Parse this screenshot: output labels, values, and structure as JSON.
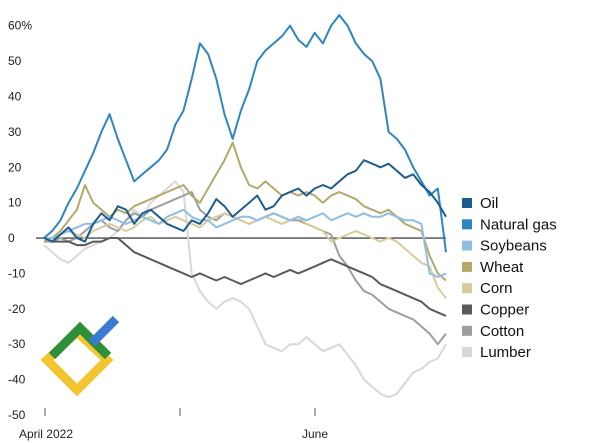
{
  "chart_data": {
    "type": "line",
    "ylim": [
      -50,
      65
    ],
    "y_ticks": [
      "60%",
      "50",
      "40",
      "30",
      "20",
      "10",
      "0",
      "-10",
      "-20",
      "-30",
      "-40",
      "-50"
    ],
    "y_tick_values": [
      60,
      50,
      40,
      30,
      20,
      10,
      0,
      -10,
      -20,
      -30,
      -40,
      -50
    ],
    "x_labels": [
      "April 2022",
      "June"
    ],
    "grid": false,
    "zero_line": true,
    "legend_position": "right",
    "series": [
      {
        "name": "Oil",
        "color": "#1d5c8f",
        "values": [
          0,
          -1,
          1,
          3,
          0,
          -1,
          4,
          7,
          5,
          9,
          8,
          4,
          7,
          8,
          6,
          4,
          3,
          2,
          5,
          4,
          7,
          11,
          9,
          6,
          8,
          10,
          12,
          8,
          9,
          12,
          13,
          14,
          12,
          14,
          15,
          14,
          16,
          18,
          19,
          22,
          21,
          20,
          21,
          19,
          17,
          18,
          15,
          13,
          10,
          6
        ]
      },
      {
        "name": "Natural gas",
        "color": "#2e86c1",
        "values": [
          0,
          2,
          5,
          10,
          14,
          19,
          24,
          30,
          35,
          28,
          22,
          16,
          18,
          20,
          22,
          25,
          32,
          36,
          45,
          55,
          52,
          45,
          35,
          28,
          36,
          42,
          50,
          53,
          55,
          57,
          60,
          56,
          54,
          58,
          55,
          60,
          63,
          60,
          55,
          52,
          50,
          45,
          30,
          28,
          25,
          20,
          16,
          12,
          14,
          -4
        ]
      },
      {
        "name": "Soybeans",
        "color": "#8fbfe0",
        "values": [
          0,
          0,
          1,
          2,
          3,
          4,
          4,
          5,
          6,
          5,
          4,
          5,
          6,
          5,
          4,
          6,
          7,
          8,
          6,
          5,
          5,
          3,
          4,
          5,
          6,
          6,
          5,
          6,
          7,
          6,
          5,
          6,
          5,
          6,
          7,
          5,
          6,
          7,
          6,
          7,
          6,
          6,
          7,
          6,
          5,
          5,
          4,
          -10,
          -11,
          -10
        ]
      },
      {
        "name": "Wheat",
        "color": "#b5a96a",
        "values": [
          -1,
          0,
          2,
          5,
          8,
          15,
          10,
          8,
          6,
          8,
          7,
          9,
          10,
          11,
          12,
          13,
          14,
          15,
          12,
          10,
          14,
          18,
          22,
          27,
          20,
          15,
          14,
          16,
          14,
          12,
          13,
          12,
          13,
          12,
          10,
          12,
          13,
          12,
          11,
          9,
          8,
          7,
          8,
          6,
          4,
          3,
          2,
          -5,
          -10,
          -12
        ]
      },
      {
        "name": "Corn",
        "color": "#d8cc9c",
        "values": [
          0,
          -1,
          1,
          2,
          1,
          0,
          2,
          3,
          4,
          3,
          2,
          3,
          5,
          6,
          4,
          5,
          6,
          5,
          4,
          3,
          5,
          6,
          7,
          6,
          5,
          4,
          5,
          6,
          5,
          4,
          5,
          6,
          4,
          3,
          2,
          -1,
          0,
          1,
          2,
          1,
          0,
          -1,
          0,
          -1,
          -3,
          -5,
          -7,
          -8,
          -14,
          -17
        ]
      },
      {
        "name": "Copper",
        "color": "#5a5a5a",
        "values": [
          0,
          -1,
          -1,
          -1,
          -2,
          -2,
          -1,
          -1,
          0,
          0,
          -2,
          -4,
          -5,
          -6,
          -7,
          -8,
          -9,
          -10,
          -11,
          -10,
          -11,
          -12,
          -11,
          -12,
          -13,
          -12,
          -11,
          -10,
          -11,
          -10,
          -9,
          -10,
          -9,
          -8,
          -7,
          -6,
          -7,
          -8,
          -9,
          -10,
          -11,
          -13,
          -14,
          -15,
          -16,
          -17,
          -18,
          -20,
          -21,
          -22
        ]
      },
      {
        "name": "Cotton",
        "color": "#9e9e9e",
        "values": [
          -1,
          -1,
          0,
          -1,
          0,
          2,
          4,
          5,
          3,
          2,
          5,
          7,
          6,
          8,
          9,
          10,
          11,
          12,
          13,
          8,
          6,
          5,
          7,
          6,
          5,
          4,
          5,
          6,
          7,
          6,
          5,
          5,
          4,
          3,
          2,
          1,
          -5,
          -8,
          -12,
          -15,
          -16,
          -18,
          -20,
          -21,
          -22,
          -23,
          -25,
          -27,
          -30,
          -27
        ]
      },
      {
        "name": "Lumber",
        "color": "#d8d8d8",
        "values": [
          -2,
          -4,
          -6,
          -7,
          -5,
          -3,
          -2,
          -1,
          0,
          2,
          5,
          8,
          6,
          10,
          12,
          14,
          16,
          13,
          -10,
          -15,
          -18,
          -20,
          -18,
          -17,
          -18,
          -20,
          -25,
          -30,
          -31,
          -32,
          -30,
          -30,
          -28,
          -30,
          -32,
          -31,
          -30,
          -33,
          -36,
          -40,
          -42,
          -44,
          -45,
          -44,
          -41,
          -38,
          -37,
          -35,
          -34,
          -30
        ]
      }
    ]
  }
}
